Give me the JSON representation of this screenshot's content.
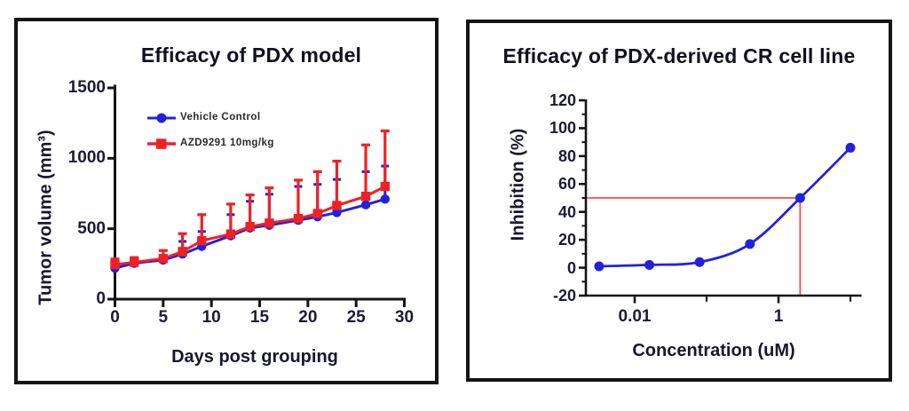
{
  "colors": {
    "blue": "#2222dd",
    "red": "#ee2125",
    "crosshair_red": "#ff4646",
    "axis": "#141414",
    "panel_border": "#141414"
  },
  "chart_data": [
    {
      "id": "pdx-model",
      "type": "line",
      "title": "Efficacy of PDX model",
      "xlabel": "Days post grouping",
      "ylabel": "Tumor volume (mm³)",
      "xlim": [
        0,
        30
      ],
      "ylim": [
        0,
        1500
      ],
      "xticks": [
        0,
        5,
        10,
        15,
        20,
        25,
        30
      ],
      "yticks": [
        0,
        500,
        1000,
        1500
      ],
      "grid": false,
      "legend_position": "upper-left-inside",
      "x": [
        0,
        2,
        5,
        7,
        9,
        12,
        14,
        16,
        19,
        21,
        23,
        26,
        28
      ],
      "series": [
        {
          "name": "Vehicle Control",
          "color": "#2222dd",
          "marker": "circle",
          "values": [
            220,
            255,
            278,
            320,
            375,
            450,
            505,
            525,
            560,
            585,
            615,
            670,
            710
          ],
          "error_up": [
            25,
            17,
            27,
            90,
            105,
            150,
            190,
            220,
            240,
            230,
            235,
            235,
            235
          ]
        },
        {
          "name": "AZD9291 10mg/kg",
          "color": "#ee2125",
          "marker": "square",
          "values": [
            245,
            262,
            288,
            338,
            415,
            462,
            515,
            540,
            572,
            608,
            665,
            730,
            800
          ],
          "error_up": [
            40,
            33,
            57,
            127,
            185,
            213,
            225,
            250,
            273,
            297,
            315,
            365,
            395
          ]
        }
      ]
    },
    {
      "id": "pdx-derived-cr-cell-line",
      "type": "line",
      "title": "Efficacy of PDX-derived CR cell line",
      "xlabel": "Concentration (uM)",
      "ylabel": "Inhibition (%)",
      "xscale": "log",
      "xlim": [
        0.002,
        14
      ],
      "ylim": [
        -20,
        120
      ],
      "yticks": [
        -20,
        0,
        20,
        40,
        60,
        80,
        100,
        120
      ],
      "yticks_minor": [
        -10,
        10,
        30,
        50,
        70,
        90,
        110
      ],
      "xticks": [
        {
          "value": 0.01,
          "label": "0.01"
        },
        {
          "value": 1,
          "label": "1"
        }
      ],
      "xticks_unlabeled": [
        0.1,
        10
      ],
      "grid": false,
      "x": [
        0.0032,
        0.016,
        0.08,
        0.4,
        2,
        10
      ],
      "values": [
        1,
        2,
        4,
        17,
        50,
        86
      ],
      "color": "#2222dd",
      "crosshair": {
        "x": 2,
        "y": 50,
        "color": "#ff4646"
      }
    }
  ]
}
